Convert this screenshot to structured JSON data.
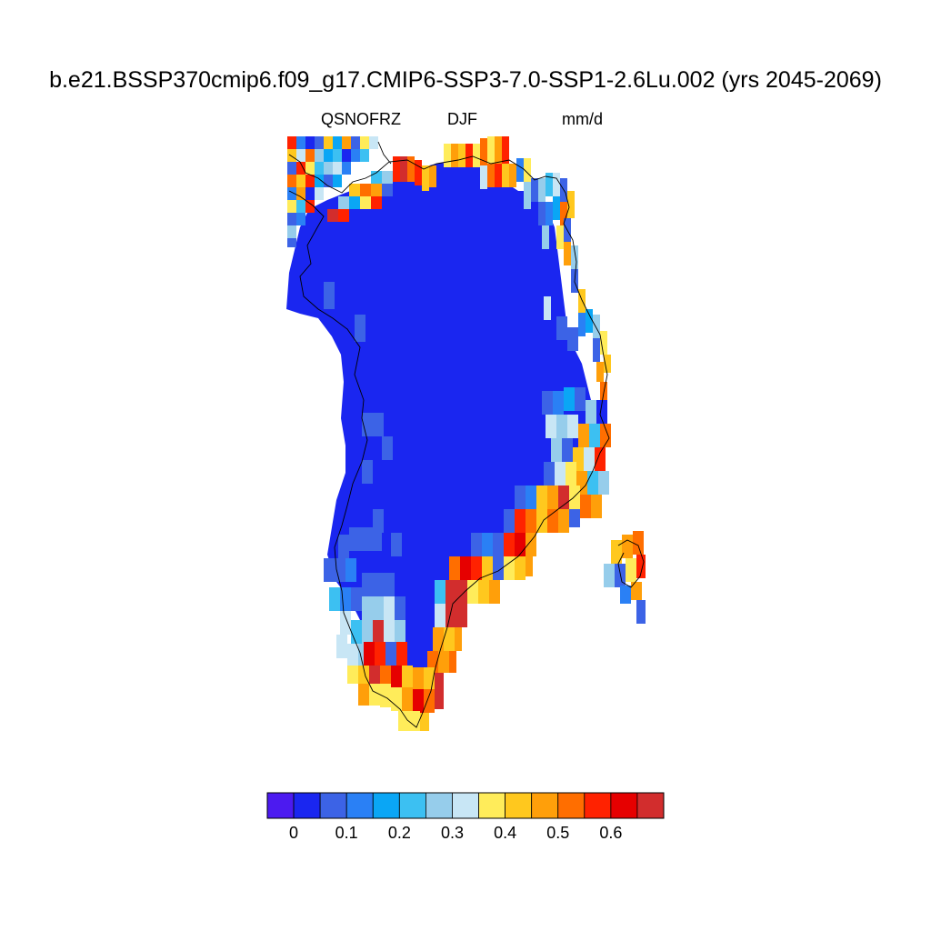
{
  "title": "b.e21.BSSP370cmip6.f09_g17.CMIP6-SSP3-7.0-SSP1-2.6Lu.002 (yrs 2045-2069)",
  "variable": "QSNOFRZ",
  "season": "DJF",
  "units": "mm/d",
  "colorbar": {
    "colors": [
      "#4c1af0",
      "#1a26f0",
      "#3c63e6",
      "#2a80f5",
      "#0aa6f5",
      "#3cc0f2",
      "#96cdeb",
      "#c8e6f5",
      "#ffec5a",
      "#ffc81e",
      "#ff9f0a",
      "#ff6e00",
      "#ff2200",
      "#e60000",
      "#d22d2d"
    ],
    "tick_labels": [
      "0",
      "0.1",
      "0.2",
      "0.3",
      "0.4",
      "0.5",
      "0.6"
    ]
  }
}
